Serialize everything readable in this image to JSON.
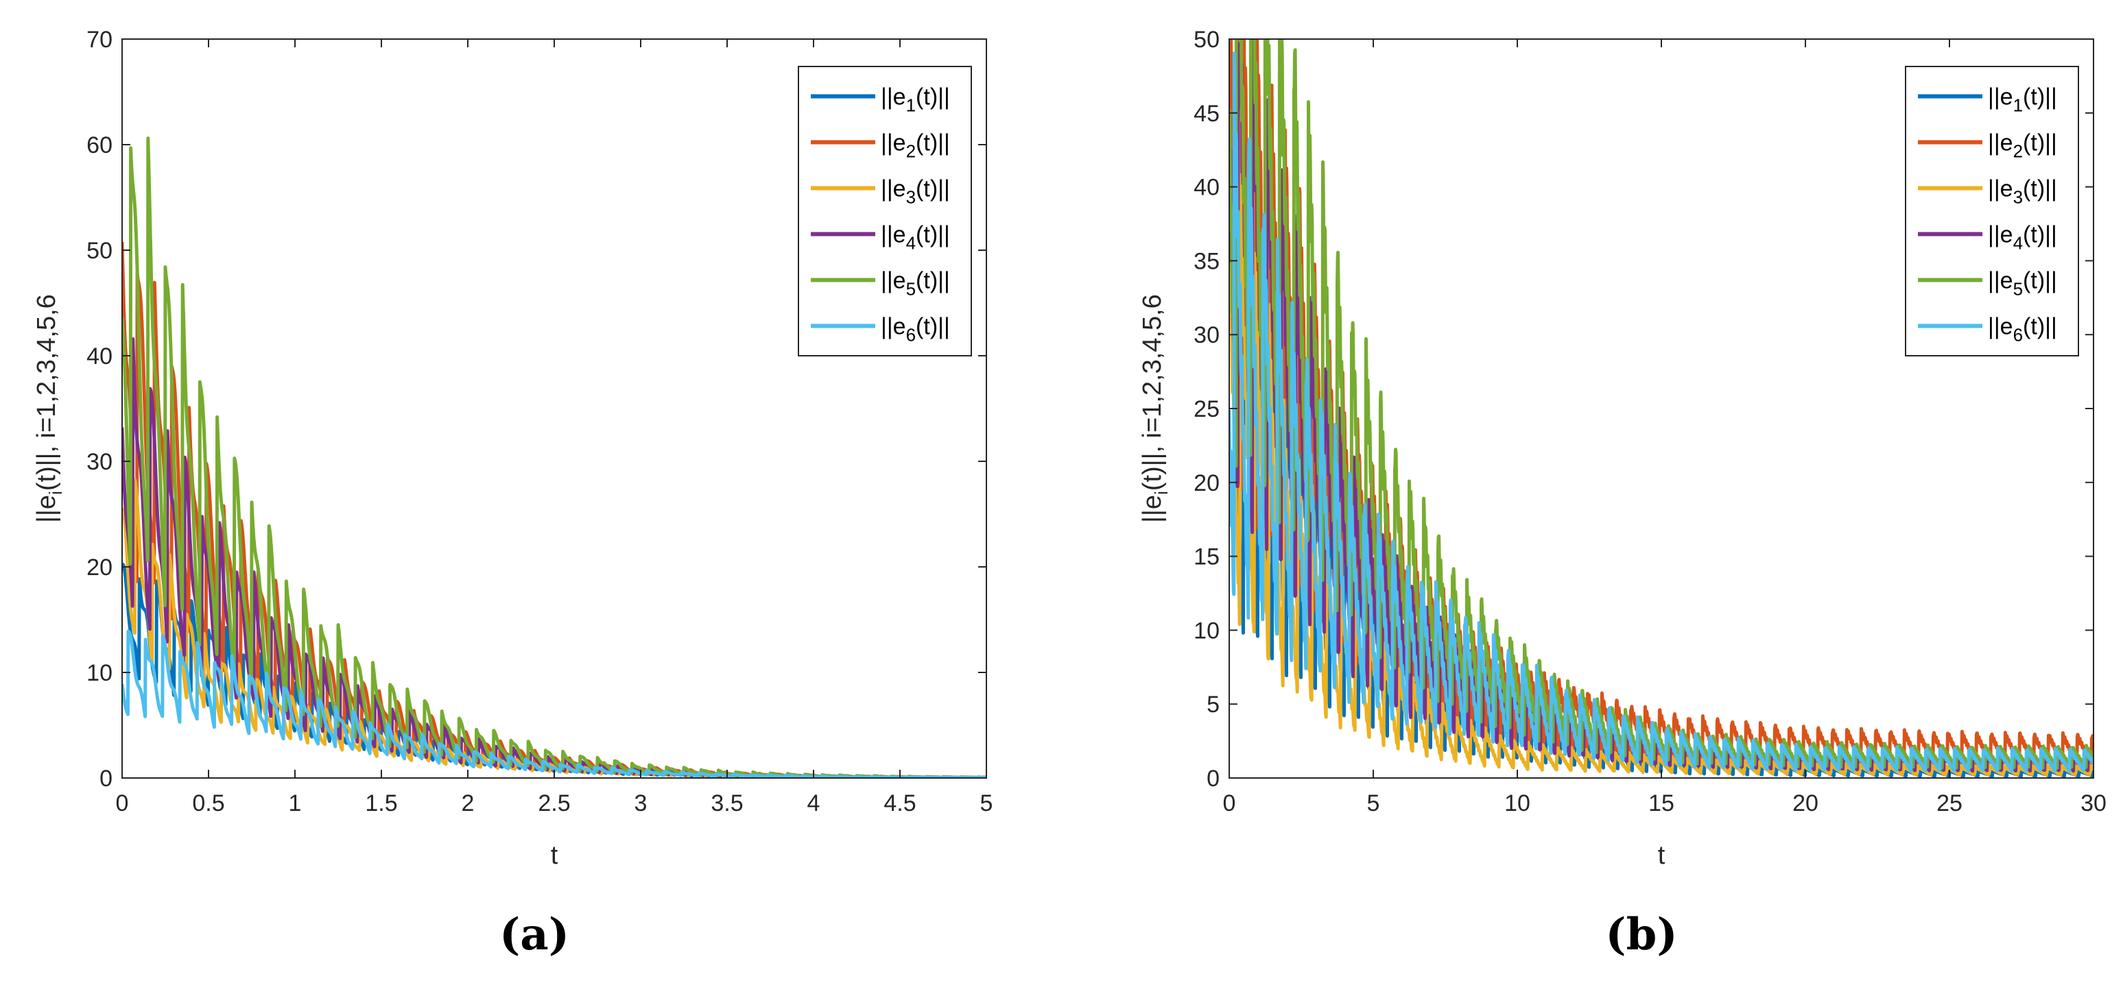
{
  "chart_data": [
    {
      "type": "line",
      "panel_label": "a",
      "xlabel": "t",
      "ylabel": "||e_i(t)||, i=1,2,3,4,5,6",
      "xlim": [
        0,
        5
      ],
      "ylim": [
        0,
        70
      ],
      "xticks": [
        "0",
        "0.5",
        "1",
        "1.5",
        "2",
        "2.5",
        "3",
        "3.5",
        "4",
        "4.5",
        "5"
      ],
      "yticks": [
        "0",
        "10",
        "20",
        "30",
        "40",
        "50",
        "60",
        "70"
      ],
      "grid": false,
      "legend_position": "top-right",
      "impulse_period": 0.1,
      "series": [
        {
          "name": "||e1(t)||",
          "color": "#0072BD",
          "x": [
            0,
            0.5,
            1,
            1.5,
            2,
            2.5,
            3,
            3.5,
            4,
            4.5,
            5
          ],
          "y": [
            15,
            11,
            6.5,
            3.8,
            2,
            1,
            0.5,
            0.25,
            0.12,
            0.06,
            0.03
          ],
          "ripple": 0.35
        },
        {
          "name": "||e2(t)||",
          "color": "#D95319",
          "x": [
            0,
            0.5,
            1,
            1.5,
            2,
            2.5,
            3,
            3.5,
            4,
            4.5,
            5
          ],
          "y": [
            38,
            20,
            10,
            5.5,
            2.8,
            1.4,
            0.7,
            0.35,
            0.17,
            0.08,
            0.04
          ],
          "ripple": 0.45
        },
        {
          "name": "||e3(t)||",
          "color": "#EDB120",
          "x": [
            0,
            0.5,
            1,
            1.5,
            2,
            2.5,
            3,
            3.5,
            4,
            4.5,
            5
          ],
          "y": [
            22,
            9,
            5.5,
            3.2,
            1.7,
            0.9,
            0.45,
            0.22,
            0.11,
            0.05,
            0.03
          ],
          "ripple": 0.35
        },
        {
          "name": "||e4(t)||",
          "color": "#7E2F8E",
          "x": [
            0,
            0.5,
            1,
            1.5,
            2,
            2.5,
            3,
            3.5,
            4,
            4.5,
            5
          ],
          "y": [
            30,
            17,
            9,
            5,
            2.6,
            1.3,
            0.65,
            0.32,
            0.16,
            0.08,
            0.04
          ],
          "ripple": 0.45
        },
        {
          "name": "||e5(t)||",
          "color": "#77AC30",
          "x": [
            0,
            0.5,
            1,
            1.5,
            2,
            2.5,
            3,
            3.5,
            4,
            4.5,
            5
          ],
          "y": [
            45,
            24,
            12,
            6.5,
            3.4,
            1.7,
            0.85,
            0.42,
            0.21,
            0.1,
            0.05
          ],
          "ripple": 0.5
        },
        {
          "name": "||e6(t)||",
          "color": "#4DBEEE",
          "x": [
            0,
            0.5,
            1,
            1.5,
            2,
            2.5,
            3,
            3.5,
            4,
            4.5,
            5
          ],
          "y": [
            10,
            8.5,
            6,
            3.6,
            1.9,
            1,
            0.5,
            0.25,
            0.12,
            0.06,
            0.03
          ],
          "ripple": 0.4
        }
      ]
    },
    {
      "type": "line",
      "panel_label": "b",
      "xlabel": "t",
      "ylabel": "||e_i(t)||, i=1,2,3,4,5,6",
      "xlim": [
        0,
        30
      ],
      "ylim": [
        0,
        50
      ],
      "xticks": [
        "0",
        "5",
        "10",
        "15",
        "20",
        "25",
        "30"
      ],
      "yticks": [
        "0",
        "5",
        "10",
        "15",
        "20",
        "25",
        "30",
        "35",
        "40",
        "45",
        "50"
      ],
      "grid": false,
      "legend_position": "top-right",
      "impulse_period": 0.5,
      "series": [
        {
          "name": "||e1(t)||",
          "color": "#0072BD",
          "x": [
            0,
            2,
            4,
            6,
            8,
            10,
            12,
            14,
            16,
            20,
            25,
            30
          ],
          "y": [
            25,
            17,
            10,
            6,
            4,
            3,
            2,
            1.2,
            0.7,
            0.4,
            0.3,
            0.3
          ],
          "ripple": 0.6
        },
        {
          "name": "||e2(t)||",
          "color": "#D95319",
          "x": [
            0,
            2,
            4,
            6,
            8,
            10,
            12,
            14,
            16,
            20,
            25,
            30
          ],
          "y": [
            40,
            28,
            17,
            11,
            7,
            5,
            4,
            3.2,
            2.7,
            2.2,
            2,
            1.9
          ],
          "ripple": 0.5
        },
        {
          "name": "||e3(t)||",
          "color": "#EDB120",
          "x": [
            0,
            2,
            4,
            6,
            8,
            10,
            12,
            14,
            16,
            20,
            25,
            30
          ],
          "y": [
            28,
            15,
            8,
            4.5,
            2.5,
            1.5,
            1.2,
            1,
            0.8,
            0.6,
            0.5,
            0.5
          ],
          "ripple": 0.6
        },
        {
          "name": "||e4(t)||",
          "color": "#7E2F8E",
          "x": [
            0,
            2,
            4,
            6,
            8,
            10,
            12,
            14,
            16,
            20,
            25,
            30
          ],
          "y": [
            40,
            26,
            15,
            9,
            6,
            4,
            3,
            2.2,
            1.6,
            1.2,
            1,
            1
          ],
          "ripple": 0.5
        },
        {
          "name": "||e5(t)||",
          "color": "#77AC30",
          "x": [
            0,
            2,
            4,
            6,
            8,
            10,
            12,
            14,
            16,
            20,
            25,
            30
          ],
          "y": [
            45,
            35,
            22,
            14,
            9,
            6,
            4,
            2.8,
            2,
            1.6,
            1.4,
            1.4
          ],
          "ripple": 0.5
        },
        {
          "name": "||e6(t)||",
          "color": "#4DBEEE",
          "x": [
            0,
            2,
            4,
            6,
            8,
            10,
            12,
            14,
            16,
            20,
            25,
            30
          ],
          "y": [
            30,
            20,
            13,
            9,
            7,
            5,
            3.5,
            2.5,
            1.8,
            1.3,
            1.2,
            1.2
          ],
          "ripple": 0.6
        }
      ]
    }
  ]
}
